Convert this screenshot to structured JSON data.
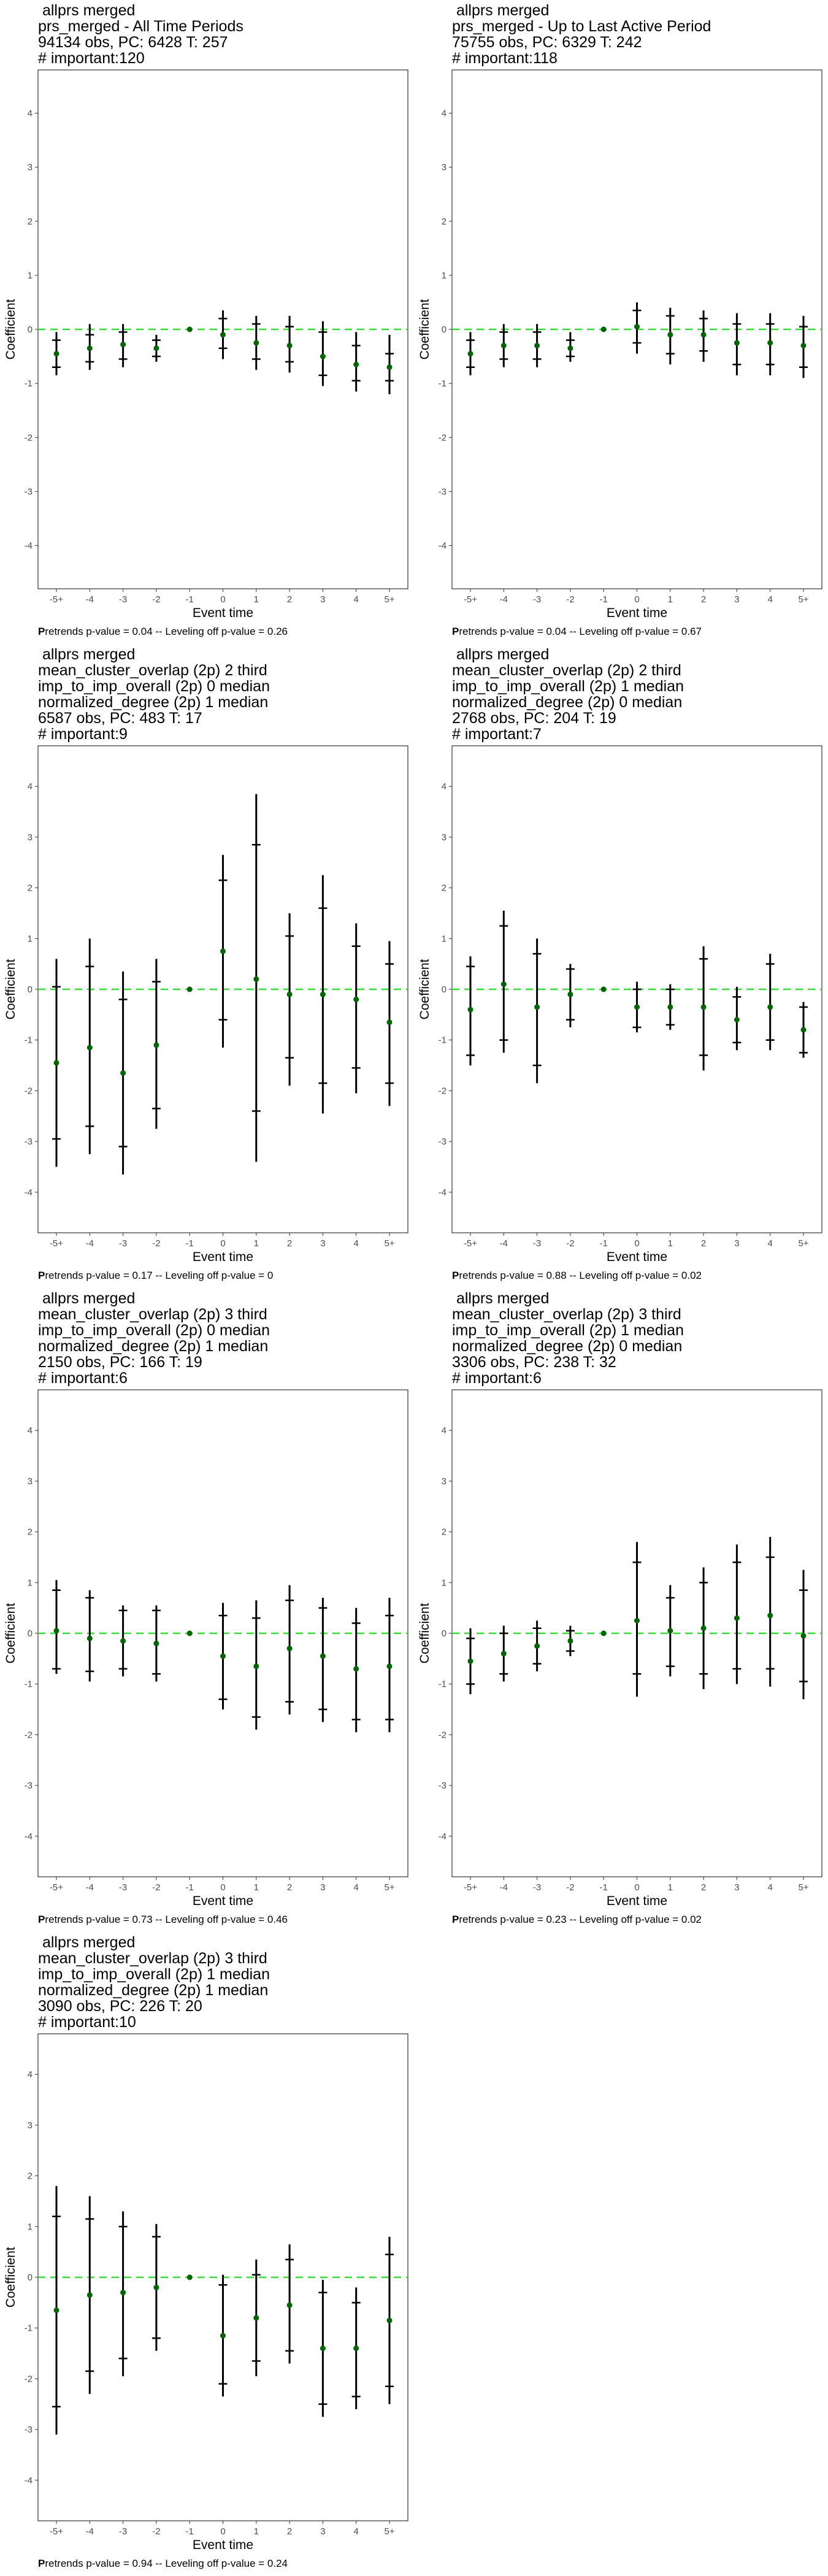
{
  "charts_axis": {
    "ylabel": "Coefficient",
    "xlabel": "Event time",
    "x_ticks": [
      "-5+",
      "-4",
      "-3",
      "-2",
      "-1",
      "0",
      "1",
      "2",
      "3",
      "4",
      "5+"
    ],
    "y_ticks": [
      4,
      3,
      2,
      1,
      0,
      -1,
      -2,
      -3,
      -4
    ]
  },
  "colors": {
    "zero_line": "#33dd33",
    "point": "#006400",
    "bar": "#000000",
    "frame": "#333333"
  },
  "chart_data": [
    {
      "type": "scatter",
      "title_lines": [
        " allprs merged",
        "prs_merged - All Time Periods",
        "94134 obs, PC: 6428 T: 257",
        "# important:120"
      ],
      "caption_bold": "P",
      "caption_rest": "retrends p-value = 0.04 -- Leveling off p-value = 0.26",
      "xlabel": "Event time",
      "ylabel": "Coefficient",
      "ylim": [
        -4.8,
        4.8
      ],
      "x": [
        "-5+",
        "-4",
        "-3",
        "-2",
        "-1",
        "0",
        "1",
        "2",
        "3",
        "4",
        "5+"
      ],
      "y": [
        -0.45,
        -0.35,
        -0.28,
        -0.35,
        0.0,
        -0.1,
        -0.25,
        -0.3,
        -0.5,
        -0.65,
        -0.7
      ],
      "ci_low": [
        -0.85,
        -0.75,
        -0.7,
        -0.6,
        0.0,
        -0.55,
        -0.75,
        -0.8,
        -1.05,
        -1.15,
        -1.2
      ],
      "ci_high": [
        -0.05,
        0.1,
        0.1,
        -0.1,
        0.0,
        0.35,
        0.25,
        0.25,
        0.15,
        -0.05,
        -0.1
      ],
      "inner_low": [
        -0.7,
        -0.6,
        -0.55,
        -0.5,
        0.0,
        -0.35,
        -0.55,
        -0.6,
        -0.85,
        -0.95,
        -0.95
      ],
      "inner_high": [
        -0.2,
        -0.1,
        -0.05,
        -0.2,
        0.0,
        0.2,
        0.1,
        0.05,
        -0.05,
        -0.3,
        -0.45
      ]
    },
    {
      "type": "scatter",
      "title_lines": [
        " allprs merged",
        "prs_merged - Up to Last Active Period",
        "75755 obs, PC: 6329 T: 242",
        "# important:118"
      ],
      "caption_bold": "P",
      "caption_rest": "retrends p-value = 0.04 -- Leveling off p-value = 0.67",
      "xlabel": "Event time",
      "ylabel": "Coefficient",
      "ylim": [
        -4.8,
        4.8
      ],
      "x": [
        "-5+",
        "-4",
        "-3",
        "-2",
        "-1",
        "0",
        "1",
        "2",
        "3",
        "4",
        "5+"
      ],
      "y": [
        -0.45,
        -0.3,
        -0.3,
        -0.35,
        0.0,
        0.05,
        -0.1,
        -0.1,
        -0.25,
        -0.25,
        -0.3
      ],
      "ci_low": [
        -0.85,
        -0.7,
        -0.7,
        -0.6,
        0.0,
        -0.45,
        -0.65,
        -0.6,
        -0.85,
        -0.85,
        -0.9
      ],
      "ci_high": [
        -0.05,
        0.1,
        0.1,
        -0.05,
        0.0,
        0.5,
        0.4,
        0.35,
        0.3,
        0.3,
        0.25
      ],
      "inner_low": [
        -0.7,
        -0.55,
        -0.55,
        -0.5,
        0.0,
        -0.25,
        -0.45,
        -0.4,
        -0.65,
        -0.65,
        -0.7
      ],
      "inner_high": [
        -0.2,
        -0.05,
        -0.05,
        -0.2,
        0.0,
        0.35,
        0.25,
        0.2,
        0.1,
        0.1,
        0.05
      ]
    },
    {
      "type": "scatter",
      "title_lines": [
        " allprs merged",
        "mean_cluster_overlap (2p) 2 third",
        "imp_to_imp_overall (2p) 0 median",
        "normalized_degree (2p) 1 median",
        "6587 obs, PC: 483 T: 17",
        "# important:9"
      ],
      "caption_bold": "P",
      "caption_rest": "retrends p-value = 0.17 -- Leveling off p-value = 0",
      "xlabel": "Event time",
      "ylabel": "Coefficient",
      "ylim": [
        -4.8,
        4.8
      ],
      "x": [
        "-5+",
        "-4",
        "-3",
        "-2",
        "-1",
        "0",
        "1",
        "2",
        "3",
        "4",
        "5+"
      ],
      "y": [
        -1.45,
        -1.15,
        -1.65,
        -1.1,
        0.0,
        0.75,
        0.2,
        -0.1,
        -0.1,
        -0.2,
        -0.65
      ],
      "ci_low": [
        -3.5,
        -3.25,
        -3.65,
        -2.75,
        0.0,
        -1.15,
        -3.4,
        -1.9,
        -2.45,
        -2.05,
        -2.3
      ],
      "ci_high": [
        0.6,
        1.0,
        0.35,
        0.6,
        0.0,
        2.65,
        3.85,
        1.5,
        2.25,
        1.3,
        0.95
      ],
      "inner_low": [
        -2.95,
        -2.7,
        -3.1,
        -2.35,
        0.0,
        -0.6,
        -2.4,
        -1.35,
        -1.85,
        -1.55,
        -1.85
      ],
      "inner_high": [
        0.05,
        0.45,
        -0.2,
        0.15,
        0.0,
        2.15,
        2.85,
        1.05,
        1.6,
        0.85,
        0.5
      ]
    },
    {
      "type": "scatter",
      "title_lines": [
        " allprs merged",
        "mean_cluster_overlap (2p) 2 third",
        "imp_to_imp_overall (2p) 1 median",
        "normalized_degree (2p) 0 median",
        "2768 obs, PC: 204 T: 19",
        "# important:7"
      ],
      "caption_bold": "P",
      "caption_rest": "retrends p-value = 0.88 -- Leveling off p-value = 0.02",
      "xlabel": "Event time",
      "ylabel": "Coefficient",
      "ylim": [
        -4.8,
        4.8
      ],
      "x": [
        "-5+",
        "-4",
        "-3",
        "-2",
        "-1",
        "0",
        "1",
        "2",
        "3",
        "4",
        "5+"
      ],
      "y": [
        -0.4,
        0.1,
        -0.35,
        -0.1,
        0.0,
        -0.35,
        -0.35,
        -0.35,
        -0.6,
        -0.35,
        -0.8
      ],
      "ci_low": [
        -1.5,
        -1.25,
        -1.85,
        -0.75,
        0.0,
        -0.85,
        -0.8,
        -1.6,
        -1.2,
        -1.2,
        -1.35
      ],
      "ci_high": [
        0.65,
        1.55,
        1.0,
        0.5,
        0.0,
        0.15,
        0.1,
        0.85,
        0.05,
        0.7,
        -0.25
      ],
      "inner_low": [
        -1.3,
        -1.0,
        -1.5,
        -0.6,
        0.0,
        -0.75,
        -0.7,
        -1.3,
        -1.05,
        -1.0,
        -1.25
      ],
      "inner_high": [
        0.45,
        1.25,
        0.7,
        0.4,
        0.0,
        0.0,
        0.0,
        0.6,
        -0.15,
        0.5,
        -0.35
      ]
    },
    {
      "type": "scatter",
      "title_lines": [
        " allprs merged",
        "mean_cluster_overlap (2p) 3 third",
        "imp_to_imp_overall (2p) 0 median",
        "normalized_degree (2p) 1 median",
        "2150 obs, PC: 166 T: 19",
        "# important:6"
      ],
      "caption_bold": "P",
      "caption_rest": "retrends p-value = 0.73 -- Leveling off p-value = 0.46",
      "xlabel": "Event time",
      "ylabel": "Coefficient",
      "ylim": [
        -4.8,
        4.8
      ],
      "x": [
        "-5+",
        "-4",
        "-3",
        "-2",
        "-1",
        "0",
        "1",
        "2",
        "3",
        "4",
        "5+"
      ],
      "y": [
        0.05,
        -0.1,
        -0.15,
        -0.2,
        0.0,
        -0.45,
        -0.65,
        -0.3,
        -0.45,
        -0.7,
        -0.65
      ],
      "ci_low": [
        -0.8,
        -0.95,
        -0.85,
        -0.95,
        0.0,
        -1.5,
        -1.9,
        -1.6,
        -1.75,
        -1.95,
        -1.95
      ],
      "ci_high": [
        1.05,
        0.85,
        0.55,
        0.55,
        0.0,
        0.6,
        0.65,
        0.95,
        0.7,
        0.5,
        0.7
      ],
      "inner_low": [
        -0.7,
        -0.75,
        -0.7,
        -0.8,
        0.0,
        -1.3,
        -1.65,
        -1.35,
        -1.5,
        -1.7,
        -1.7
      ],
      "inner_high": [
        0.85,
        0.7,
        0.45,
        0.45,
        0.0,
        0.35,
        0.3,
        0.65,
        0.5,
        0.2,
        0.35
      ]
    },
    {
      "type": "scatter",
      "title_lines": [
        " allprs merged",
        "mean_cluster_overlap (2p) 3 third",
        "imp_to_imp_overall (2p) 1 median",
        "normalized_degree (2p) 0 median",
        "3306 obs, PC: 238 T: 32",
        "# important:6"
      ],
      "caption_bold": "P",
      "caption_rest": "retrends p-value = 0.23 -- Leveling off p-value = 0.02",
      "xlabel": "Event time",
      "ylabel": "Coefficient",
      "ylim": [
        -4.8,
        4.8
      ],
      "x": [
        "-5+",
        "-4",
        "-3",
        "-2",
        "-1",
        "0",
        "1",
        "2",
        "3",
        "4",
        "5+"
      ],
      "y": [
        -0.55,
        -0.4,
        -0.25,
        -0.15,
        0.0,
        0.25,
        0.05,
        0.1,
        0.3,
        0.35,
        -0.05
      ],
      "ci_low": [
        -1.2,
        -0.95,
        -0.75,
        -0.45,
        0.0,
        -1.25,
        -0.85,
        -1.1,
        -1.0,
        -1.05,
        -1.3
      ],
      "ci_high": [
        0.1,
        0.15,
        0.25,
        0.15,
        0.0,
        1.8,
        0.95,
        1.3,
        1.75,
        1.9,
        1.25
      ],
      "inner_low": [
        -1.0,
        -0.8,
        -0.6,
        -0.35,
        0.0,
        -0.8,
        -0.65,
        -0.8,
        -0.7,
        -0.7,
        -0.95
      ],
      "inner_high": [
        -0.1,
        0.0,
        0.1,
        0.05,
        0.0,
        1.4,
        0.7,
        1.0,
        1.4,
        1.5,
        0.85
      ]
    },
    {
      "type": "scatter",
      "title_lines": [
        " allprs merged",
        "mean_cluster_overlap (2p) 3 third",
        "imp_to_imp_overall (2p) 1 median",
        "normalized_degree (2p) 1 median",
        "3090 obs, PC: 226 T: 20",
        "# important:10"
      ],
      "caption_bold": "P",
      "caption_rest": "retrends p-value = 0.94 -- Leveling off p-value = 0.24",
      "xlabel": "Event time",
      "ylabel": "Coefficient",
      "ylim": [
        -4.8,
        4.8
      ],
      "x": [
        "-5+",
        "-4",
        "-3",
        "-2",
        "-1",
        "0",
        "1",
        "2",
        "3",
        "4",
        "5+"
      ],
      "y": [
        -0.65,
        -0.35,
        -0.3,
        -0.2,
        0.0,
        -1.15,
        -0.8,
        -0.55,
        -1.4,
        -1.4,
        -0.85
      ],
      "ci_low": [
        -3.1,
        -2.3,
        -1.95,
        -1.45,
        0.0,
        -2.35,
        -1.95,
        -1.7,
        -2.75,
        -2.6,
        -2.5
      ],
      "ci_high": [
        1.8,
        1.6,
        1.3,
        1.05,
        0.0,
        0.05,
        0.35,
        0.65,
        -0.05,
        -0.2,
        0.8
      ],
      "inner_low": [
        -2.55,
        -1.85,
        -1.6,
        -1.2,
        0.0,
        -2.1,
        -1.65,
        -1.45,
        -2.5,
        -2.35,
        -2.15
      ],
      "inner_high": [
        1.2,
        1.15,
        1.0,
        0.8,
        0.0,
        -0.15,
        0.05,
        0.35,
        -0.3,
        -0.5,
        0.45
      ]
    }
  ]
}
